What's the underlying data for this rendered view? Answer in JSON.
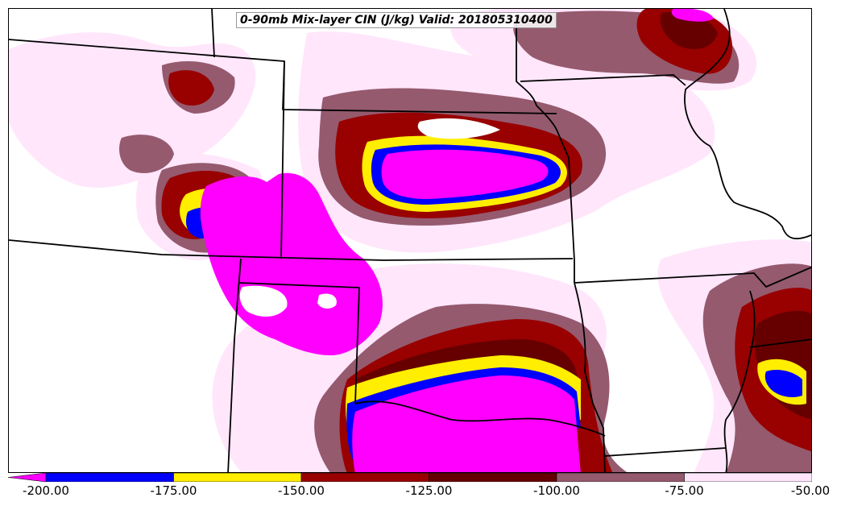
{
  "title": "0-90mb Mix-layer CIN (J/kg) Valid: 201805310400",
  "colorbar": {
    "ticks": [
      "-200.00",
      "-175.00",
      "-150.00",
      "-125.00",
      "-100.00",
      "-75.00",
      "-50.00"
    ],
    "bins": [
      {
        "range": "< -200",
        "color": "#ff00ff"
      },
      {
        "range": "-200 to -175",
        "color": "#0000ff"
      },
      {
        "range": "-175 to -150",
        "color": "#ffee00"
      },
      {
        "range": "-150 to -125",
        "color": "#990000"
      },
      {
        "range": "-125 to -100",
        "color": "#660000"
      },
      {
        "range": "-100 to -75",
        "color": "#955a6e"
      },
      {
        "range": "-75 to -50",
        "color": "#ffe6fb"
      }
    ]
  }
}
